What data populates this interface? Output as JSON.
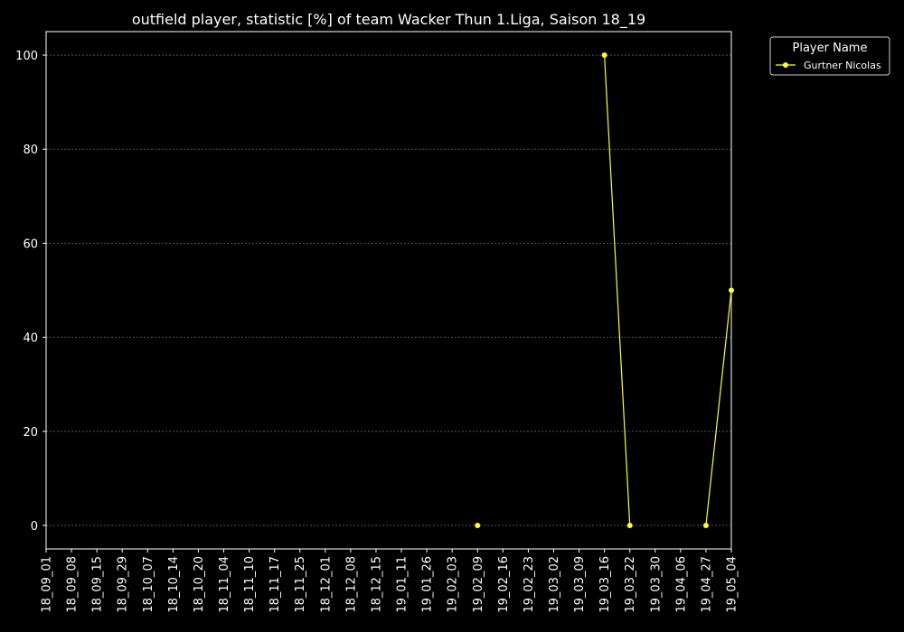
{
  "chart_data": {
    "type": "line",
    "title": "outfield player, statistic [%] of team Wacker Thun 1.Liga, Saison 18_19",
    "xlabel": "",
    "ylabel": "",
    "categories": [
      "18_09_01",
      "18_09_08",
      "18_09_15",
      "18_09_29",
      "18_10_07",
      "18_10_14",
      "18_10_20",
      "18_11_04",
      "18_11_10",
      "18_11_17",
      "18_11_25",
      "18_12_01",
      "18_12_08",
      "18_12_15",
      "19_01_11",
      "19_01_26",
      "19_02_03",
      "19_02_09",
      "19_02_16",
      "19_02_23",
      "19_03_02",
      "19_03_09",
      "19_03_16",
      "19_03_22",
      "19_03_30",
      "19_04_06",
      "19_04_27",
      "19_05_04"
    ],
    "yticks": [
      0,
      20,
      40,
      60,
      80,
      100
    ],
    "ylim": [
      -5,
      105
    ],
    "grid": true,
    "legend": {
      "title": "Player Name",
      "position": "outside-top-right"
    },
    "series": [
      {
        "name": "Gurtner Nicolas",
        "color": "#ffff33",
        "values": [
          null,
          null,
          null,
          null,
          null,
          null,
          null,
          null,
          null,
          null,
          null,
          null,
          null,
          null,
          null,
          null,
          null,
          0,
          null,
          null,
          null,
          null,
          100,
          0,
          null,
          null,
          0,
          50
        ]
      }
    ]
  },
  "colors": {
    "background": "#000000",
    "axes": "#ffffff",
    "grid": "#888888",
    "text": "#ffffff"
  }
}
